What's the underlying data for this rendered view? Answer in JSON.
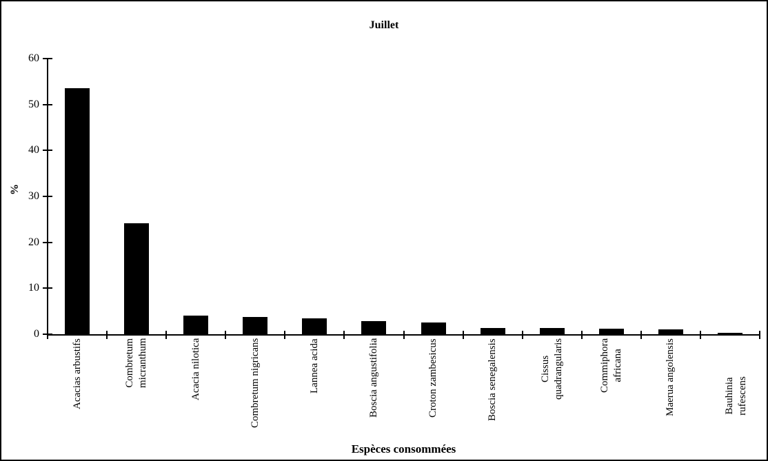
{
  "chart_data": {
    "type": "bar",
    "title": "Juillet",
    "xlabel": "Espèces consommées",
    "ylabel": "%",
    "categories": [
      "Acacias arbustifs",
      "Combretum\nmicranthum",
      "Acacia nilotica",
      "Combretum nigricans",
      "Lannea acida",
      "Boscia angustifolia",
      "Croton zambesicus",
      "Boscia senegalensis",
      "Cissus\nquadrangularis",
      "Commiphora\nafricana",
      "Maerua angolensis",
      "Bauhinia rufescens"
    ],
    "values": [
      53.5,
      24.2,
      4.0,
      3.7,
      3.5,
      2.8,
      2.5,
      1.4,
      1.3,
      1.2,
      1.0,
      0.3
    ],
    "ylim": [
      0,
      60
    ],
    "yticks": [
      0,
      10,
      20,
      30,
      40,
      50,
      60
    ],
    "grid": false,
    "legend": false,
    "bar_color": "#000000",
    "axis_color": "#000000",
    "background_color": "#ffffff",
    "tick_style": "cross",
    "x_label_rotation_degrees": 90
  }
}
